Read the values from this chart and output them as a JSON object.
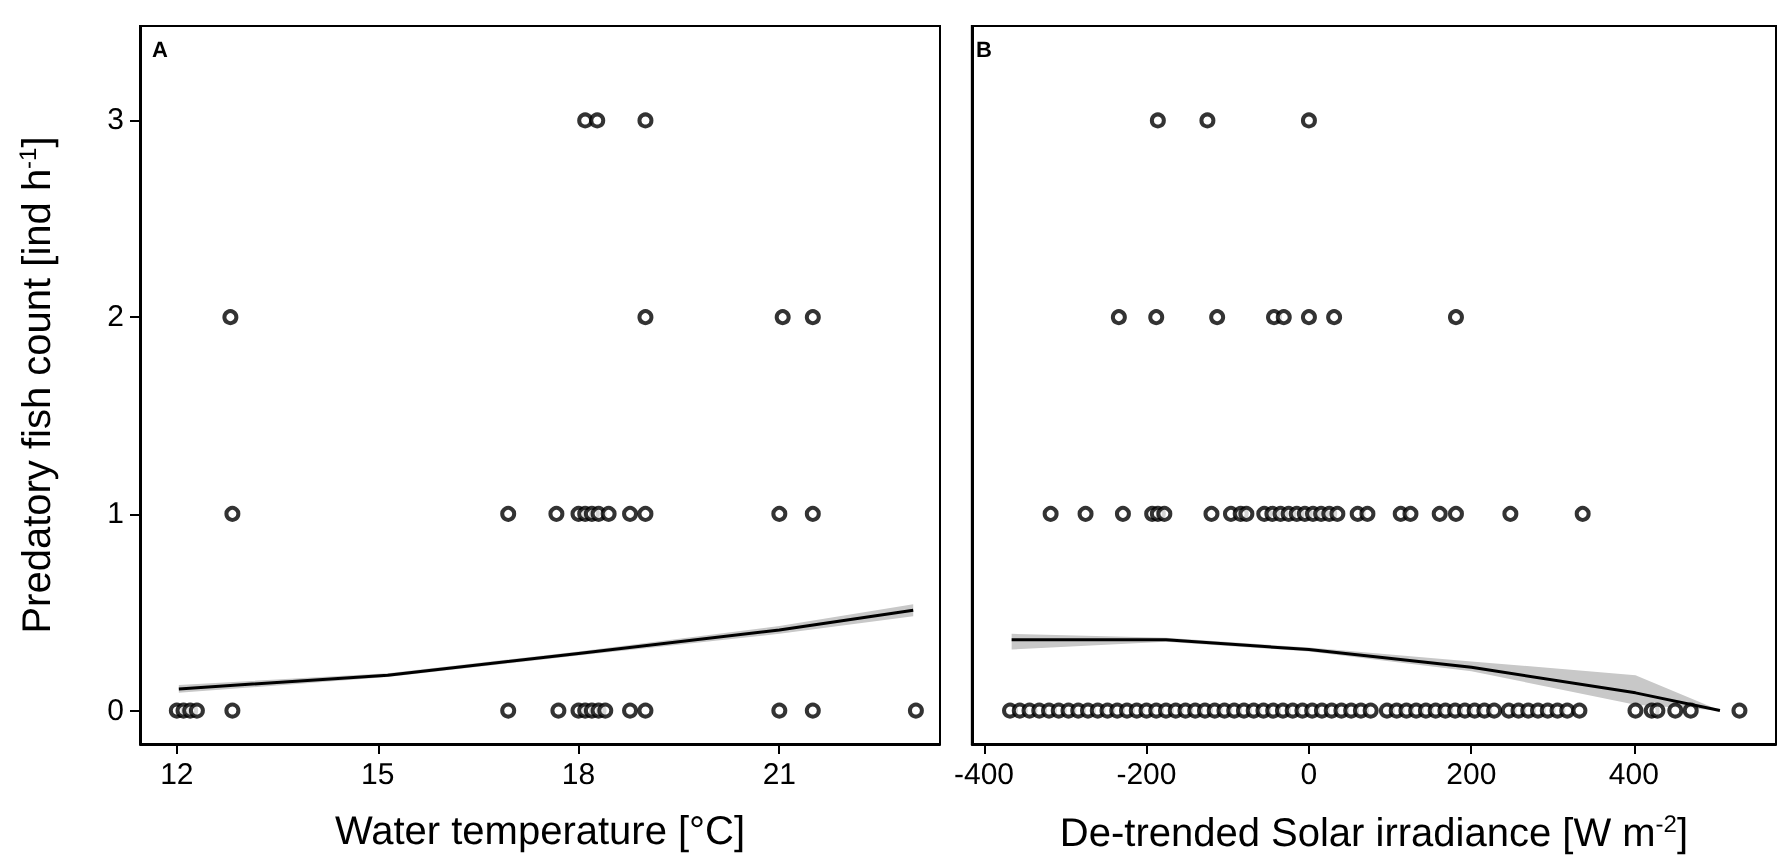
{
  "chart_data": [
    {
      "type": "scatter",
      "title": "A",
      "xlabel": "Water temperature [°C]",
      "ylabel": "Predatory fish count [ind h$^{-1}$]",
      "xlim": [
        11.45,
        23.4
      ],
      "xticks": [
        12,
        15,
        18,
        21
      ],
      "ylim": [
        -0.17,
        3.48
      ],
      "yticks": [
        0,
        1,
        2,
        3
      ],
      "series": [
        {
          "marker": "circle",
          "color": "#000000",
          "x": [
            18.1,
            18.28,
            19.0,
            12.8,
            19.0,
            21.05,
            21.5,
            12.83,
            16.95,
            17.67,
            18.0,
            18.1,
            18.2,
            18.3,
            18.45,
            18.77,
            19.0,
            21.0,
            21.5,
            12.0,
            12.1,
            12.2,
            12.3,
            12.83,
            16.95,
            17.7,
            18.0,
            18.1,
            18.2,
            18.3,
            18.4,
            18.77,
            19.0,
            21.0,
            21.5,
            23.04
          ],
          "values": [
            3,
            3,
            3,
            2,
            2,
            2,
            2,
            1,
            1,
            1,
            1,
            1,
            1,
            1,
            1,
            1,
            1,
            1,
            1,
            0,
            0,
            0,
            0,
            0,
            0,
            0,
            0,
            0,
            0,
            0,
            0,
            0,
            0,
            0,
            0,
            0
          ]
        },
        {
          "type": "line",
          "marker": "none",
          "color": "#000000",
          "x": [
            12.03,
            15.15,
            18.0,
            21.0,
            23.0
          ],
          "values": [
            0.11,
            0.18,
            0.29,
            0.41,
            0.51
          ],
          "lower": [
            0.09,
            0.17,
            0.28,
            0.39,
            0.48
          ],
          "upper": [
            0.13,
            0.19,
            0.3,
            0.43,
            0.54
          ]
        }
      ]
    },
    {
      "type": "scatter",
      "title": "B",
      "xlabel": "De-trended Solar irradiance [W m$^{-2}$]",
      "xlim": [
        -415,
        575
      ],
      "xticks": [
        -400,
        -200,
        0,
        200,
        400
      ],
      "ylim": [
        -0.17,
        3.48
      ],
      "yticks": [
        0,
        1,
        2,
        3
      ],
      "tick_labels": "x",
      "series": [
        {
          "marker": "circle",
          "color": "#000000",
          "x": [
            -186,
            -125,
            0,
            -234,
            -188,
            -113,
            -43,
            -31,
            0,
            31,
            181,
            -318,
            -275,
            -229,
            -193,
            -186,
            -178,
            -120,
            -96,
            -84,
            -77,
            -55,
            -45,
            -35,
            -25,
            -15,
            -5,
            5,
            15,
            25,
            35,
            60,
            72,
            113,
            125,
            161,
            181,
            248,
            337,
            -368,
            -356,
            -344,
            -332,
            -320,
            -308,
            -296,
            -284,
            -272,
            -260,
            -248,
            -236,
            -224,
            -212,
            -200,
            -188,
            -176,
            -164,
            -152,
            -140,
            -128,
            -116,
            -104,
            -92,
            -80,
            -68,
            -56,
            -44,
            -32,
            -20,
            -8,
            4,
            16,
            28,
            40,
            52,
            64,
            76,
            96,
            108,
            120,
            132,
            144,
            156,
            168,
            180,
            192,
            204,
            216,
            228,
            246,
            258,
            270,
            282,
            294,
            306,
            318,
            333,
            402,
            422,
            429,
            451,
            470,
            530
          ],
          "values": [
            3,
            3,
            3,
            2,
            2,
            2,
            2,
            2,
            2,
            2,
            2,
            1,
            1,
            1,
            1,
            1,
            1,
            1,
            1,
            1,
            1,
            1,
            1,
            1,
            1,
            1,
            1,
            1,
            1,
            1,
            1,
            1,
            1,
            1,
            1,
            1,
            1,
            1,
            1,
            0,
            0,
            0,
            0,
            0,
            0,
            0,
            0,
            0,
            0,
            0,
            0,
            0,
            0,
            0,
            0,
            0,
            0,
            0,
            0,
            0,
            0,
            0,
            0,
            0,
            0,
            0,
            0,
            0,
            0,
            0,
            0,
            0,
            0,
            0,
            0,
            0,
            0,
            0,
            0,
            0,
            0,
            0,
            0,
            0,
            0,
            0,
            0,
            0,
            0,
            0,
            0,
            0,
            0,
            0,
            0,
            0,
            0,
            0,
            0,
            0,
            0,
            0,
            0
          ]
        },
        {
          "type": "line",
          "marker": "none",
          "color": "#000000",
          "x": [
            -366,
            -176,
            0,
            200,
            402,
            506
          ],
          "values": [
            0.36,
            0.36,
            0.31,
            0.22,
            0.09,
            0.0
          ],
          "lower": [
            0.31,
            0.35,
            0.3,
            0.2,
            0.03,
            0.0
          ],
          "upper": [
            0.39,
            0.37,
            0.32,
            0.25,
            0.18,
            0.0
          ]
        }
      ]
    }
  ]
}
